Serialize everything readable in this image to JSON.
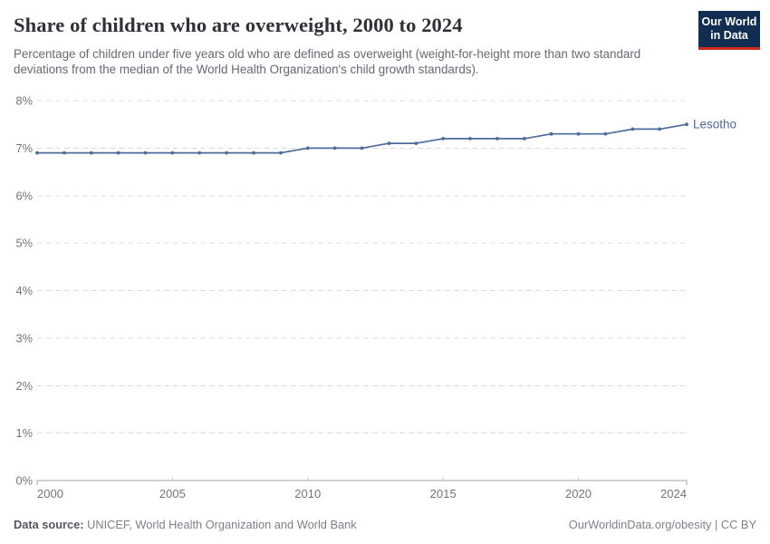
{
  "header": {
    "title": "Share of children who are overweight, 2000 to 2024",
    "subtitle": "Percentage of children under five years old who are defined as overweight (weight-for-height more than two standard deviations from the median of the World Health Organization's child growth standards).",
    "logo": {
      "line1": "Our World",
      "line2": "in Data",
      "bg_color": "#0f2e51",
      "accent_color": "#d22a1f"
    }
  },
  "chart_data": {
    "type": "line",
    "title": "Share of children who are overweight, 2000 to 2024",
    "x": [
      2000,
      2001,
      2002,
      2003,
      2004,
      2005,
      2006,
      2007,
      2008,
      2009,
      2010,
      2011,
      2012,
      2013,
      2014,
      2015,
      2016,
      2017,
      2018,
      2019,
      2020,
      2021,
      2022,
      2023,
      2024
    ],
    "series": [
      {
        "name": "Lesotho",
        "color": "#4C6A9C",
        "values": [
          6.9,
          6.9,
          6.9,
          6.9,
          6.9,
          6.9,
          6.9,
          6.9,
          6.9,
          6.9,
          7.0,
          7.0,
          7.0,
          7.1,
          7.1,
          7.2,
          7.2,
          7.2,
          7.2,
          7.3,
          7.3,
          7.3,
          7.4,
          7.4,
          7.5
        ]
      }
    ],
    "xlim": [
      2000,
      2024
    ],
    "ylim": [
      0,
      8
    ],
    "xtick_values": [
      2000,
      2005,
      2010,
      2015,
      2020,
      2024
    ],
    "xtick_labels": [
      "2000",
      "2005",
      "2010",
      "2015",
      "2020",
      "2024"
    ],
    "ytick_values": [
      0,
      1,
      2,
      3,
      4,
      5,
      6,
      7,
      8
    ],
    "ytick_labels": [
      "0%",
      "1%",
      "2%",
      "3%",
      "4%",
      "5%",
      "6%",
      "7%",
      "8%"
    ],
    "grid": "horizontal-dashed",
    "legend_position": "end-of-line",
    "colors": {
      "gridline": "#dcdcdc",
      "axis": "#a3a3a3",
      "tick": "#c9c9c9",
      "tick_label": "#747474"
    }
  },
  "footer": {
    "source_label": "Data source:",
    "source_text": " UNICEF, World Health Organization and World Bank",
    "credit": "OurWorldinData.org/obesity | CC BY"
  }
}
